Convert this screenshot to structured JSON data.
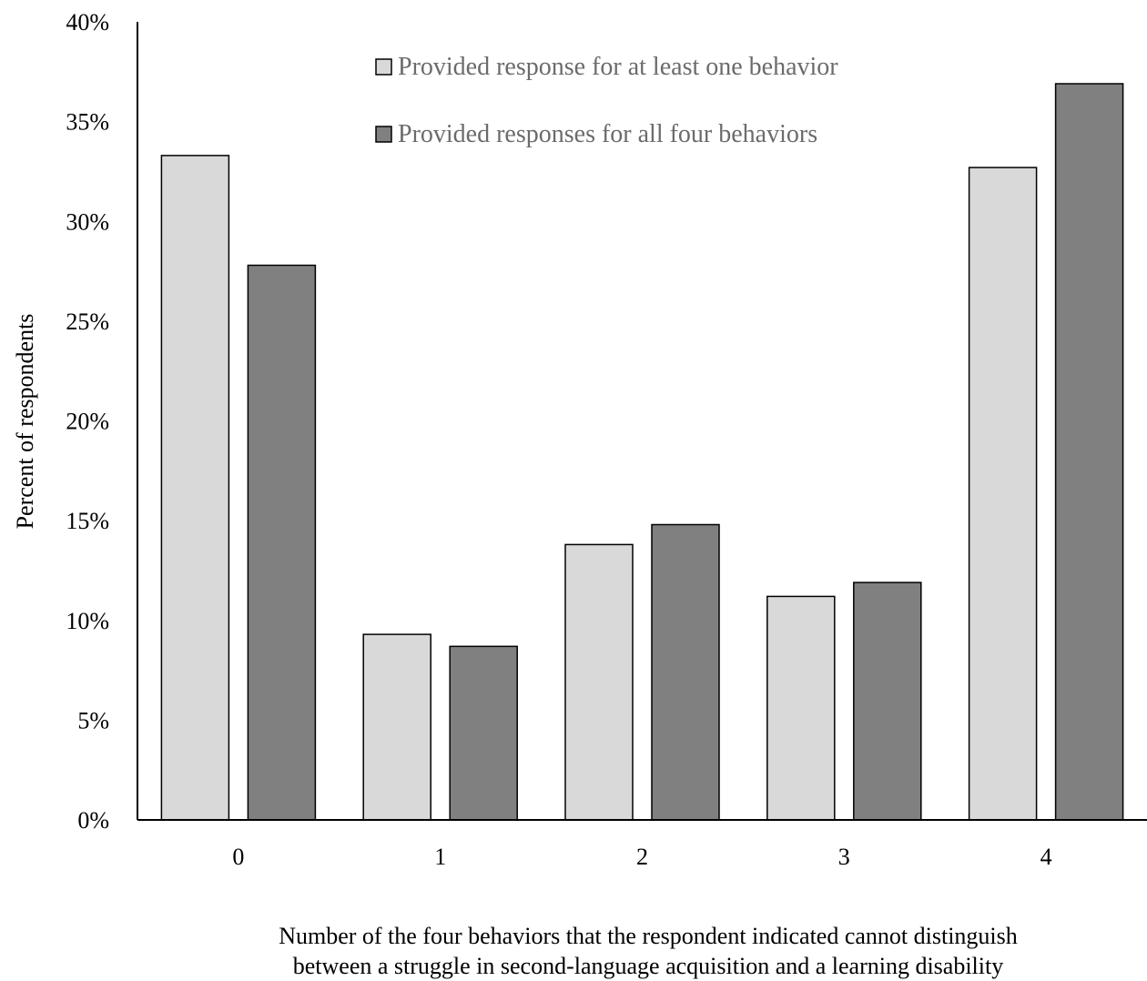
{
  "chart_data": {
    "type": "bar",
    "categories": [
      "0",
      "1",
      "2",
      "3",
      "4"
    ],
    "series": [
      {
        "name": "Provided response for at least one behavior",
        "values": [
          33.3,
          9.3,
          13.8,
          11.2,
          32.7
        ],
        "color": "#d9d9d9"
      },
      {
        "name": "Provided responses for all four behaviors",
        "values": [
          27.8,
          8.7,
          14.8,
          11.9,
          36.9
        ],
        "color": "#808080"
      }
    ],
    "ylabel": "Percent of respondents",
    "xlabel_lines": [
      "Number of the four behaviors that the respondent indicated cannot distinguish",
      "between a struggle in second-language acquisition and a learning disability"
    ],
    "ylim": [
      0,
      40
    ],
    "yticks": [
      0,
      5,
      10,
      15,
      20,
      25,
      30,
      35,
      40
    ],
    "ytick_labels": [
      "0%",
      "5%",
      "10%",
      "15%",
      "20%",
      "25%",
      "30%",
      "35%",
      "40%"
    ],
    "grid": false,
    "legend_position": "top-center"
  }
}
